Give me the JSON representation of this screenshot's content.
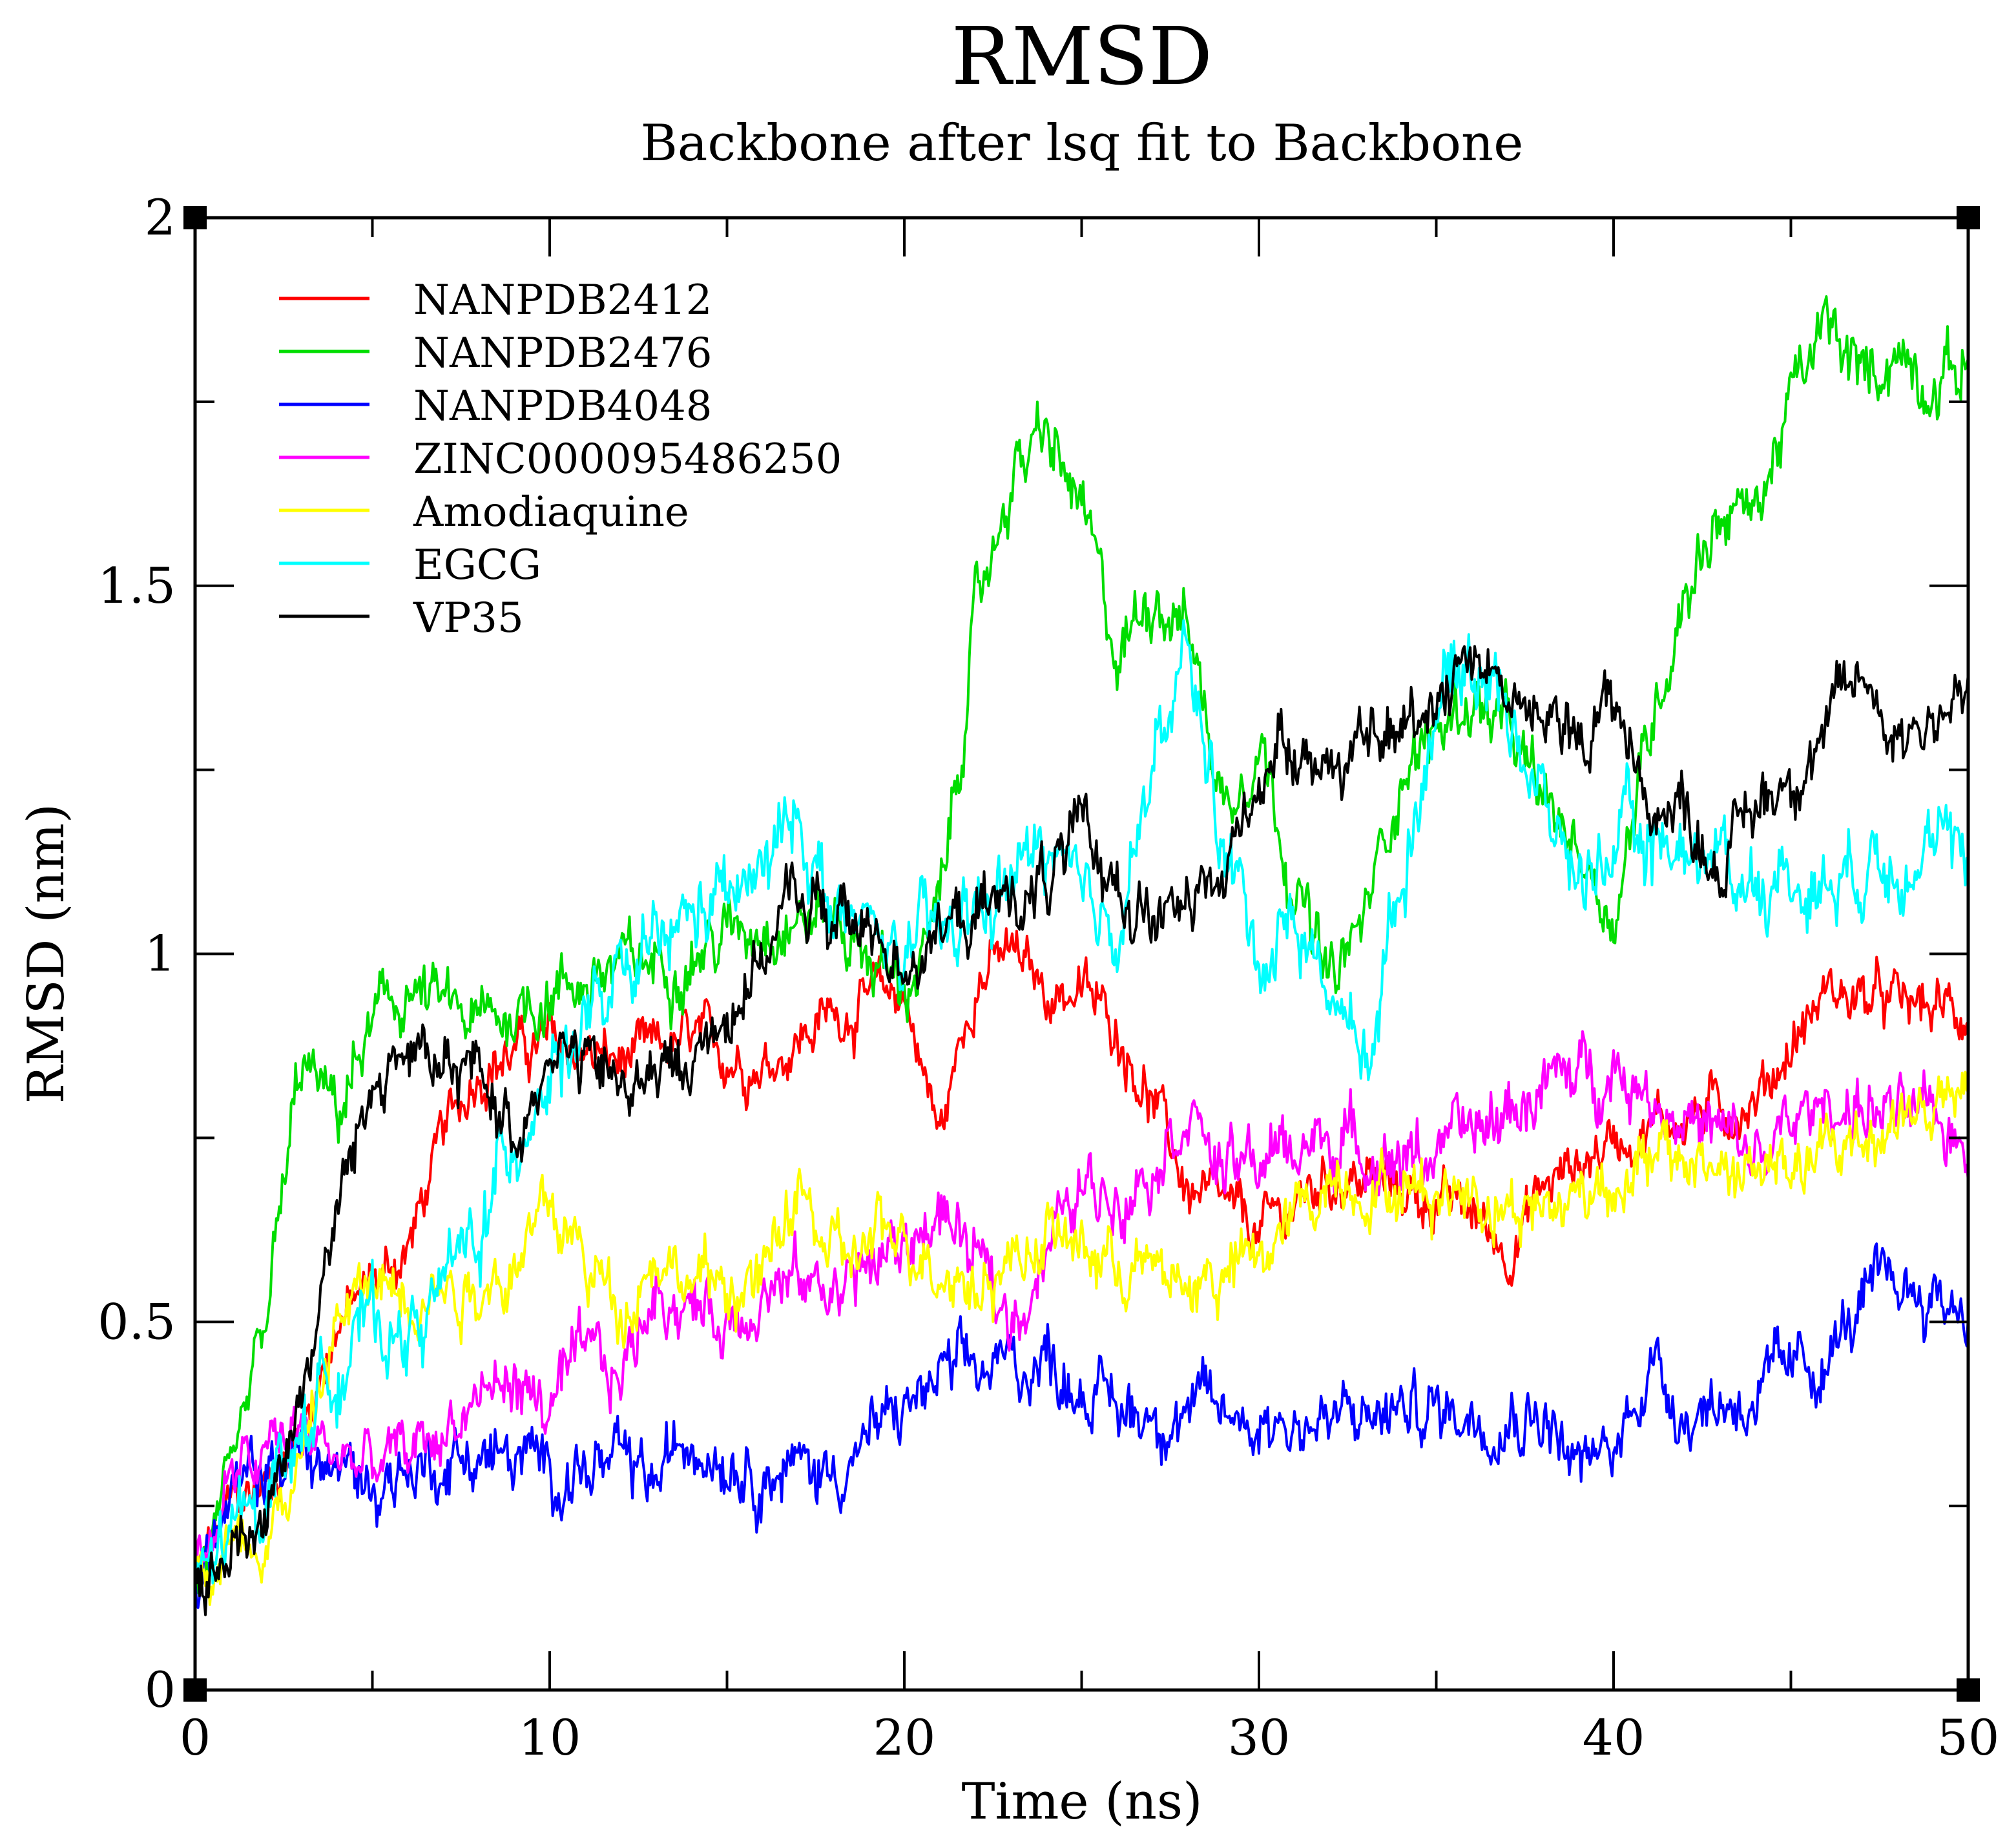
{
  "chart_data": {
    "type": "line",
    "title": "RMSD",
    "subtitle": "Backbone after lsq fit to Backbone",
    "xlabel": "Time (ns)",
    "ylabel": "RMSD (nm)",
    "xlim": [
      0,
      50
    ],
    "ylim": [
      0,
      2
    ],
    "x_ticks": [
      0,
      10,
      20,
      30,
      40,
      50
    ],
    "x_tick_labels": [
      "0",
      "10",
      "20",
      "30",
      "40",
      "50"
    ],
    "x_minor_step": 5,
    "y_ticks": [
      0,
      0.5,
      1,
      1.5,
      2
    ],
    "y_tick_labels": [
      "0",
      "0.5",
      "1",
      "1.5",
      "2"
    ],
    "y_minor_step": 0.25,
    "grid": false,
    "legend_position": "top-left",
    "series": [
      {
        "name": "NANPDB2412",
        "color": "#ff0000",
        "noise": 0.025,
        "x": [
          0,
          1,
          2,
          3,
          4,
          5,
          6,
          7,
          8,
          10,
          12,
          14,
          16,
          18,
          20,
          21,
          22,
          23,
          24,
          25,
          26,
          27,
          28,
          29,
          30,
          32,
          34,
          36,
          37,
          38,
          40,
          42,
          44,
          46,
          48,
          50
        ],
        "values": [
          0.15,
          0.25,
          0.28,
          0.35,
          0.5,
          0.55,
          0.6,
          0.75,
          0.85,
          0.88,
          0.85,
          0.88,
          0.85,
          0.92,
          0.95,
          0.75,
          0.97,
          1.0,
          0.95,
          0.95,
          0.9,
          0.8,
          0.68,
          0.65,
          0.62,
          0.7,
          0.68,
          0.65,
          0.6,
          0.68,
          0.75,
          0.78,
          0.8,
          0.95,
          0.93,
          0.92
        ]
      },
      {
        "name": "NANPDB2476",
        "color": "#00dd00",
        "noise": 0.03,
        "x": [
          0,
          1,
          2,
          3,
          4,
          5,
          6,
          8,
          10,
          12,
          14,
          16,
          18,
          20,
          21,
          22,
          23,
          24,
          25,
          26,
          27,
          28,
          29,
          30,
          31,
          32,
          33,
          34,
          35,
          36,
          37,
          38,
          39,
          40,
          41,
          42,
          43,
          44,
          45,
          46,
          47,
          48,
          49,
          50
        ],
        "values": [
          0.15,
          0.25,
          0.5,
          0.85,
          0.78,
          0.9,
          0.95,
          0.9,
          0.95,
          0.98,
          1.0,
          1.05,
          1.05,
          0.95,
          1.05,
          1.45,
          1.65,
          1.7,
          1.6,
          1.4,
          1.5,
          1.45,
          1.2,
          1.3,
          1.1,
          0.95,
          1.05,
          1.25,
          1.3,
          1.35,
          1.3,
          1.2,
          1.15,
          1.05,
          1.3,
          1.5,
          1.6,
          1.6,
          1.75,
          1.85,
          1.78,
          1.82,
          1.78,
          1.8
        ]
      },
      {
        "name": "NANPDB4048",
        "color": "#0000ff",
        "noise": 0.03,
        "x": [
          0,
          1,
          2,
          3,
          4,
          5,
          6,
          8,
          10,
          12,
          13,
          14,
          16,
          18,
          20,
          21,
          22,
          24,
          26,
          28,
          30,
          32,
          34,
          36,
          38,
          39,
          40,
          41,
          42,
          44,
          46,
          47,
          48,
          50
        ],
        "values": [
          0.15,
          0.25,
          0.3,
          0.32,
          0.3,
          0.28,
          0.3,
          0.32,
          0.3,
          0.3,
          0.28,
          0.35,
          0.3,
          0.3,
          0.38,
          0.42,
          0.43,
          0.45,
          0.38,
          0.38,
          0.37,
          0.36,
          0.38,
          0.38,
          0.38,
          0.3,
          0.32,
          0.45,
          0.38,
          0.4,
          0.45,
          0.52,
          0.55,
          0.52
        ]
      },
      {
        "name": "ZINC000095486250",
        "color": "#ff00ff",
        "noise": 0.03,
        "x": [
          0,
          1,
          2,
          3,
          4,
          5,
          6,
          7,
          8,
          9,
          10,
          11,
          12,
          13,
          14,
          15,
          16,
          18,
          20,
          21,
          22,
          23,
          24,
          25,
          26,
          27,
          28,
          29,
          30,
          32,
          34,
          36,
          38,
          40,
          42,
          44,
          46,
          48,
          50
        ],
        "values": [
          0.15,
          0.28,
          0.32,
          0.35,
          0.32,
          0.3,
          0.32,
          0.35,
          0.4,
          0.42,
          0.38,
          0.45,
          0.42,
          0.55,
          0.52,
          0.5,
          0.55,
          0.55,
          0.6,
          0.65,
          0.58,
          0.5,
          0.6,
          0.68,
          0.68,
          0.72,
          0.8,
          0.7,
          0.72,
          0.75,
          0.72,
          0.75,
          0.82,
          0.85,
          0.78,
          0.72,
          0.8,
          0.78,
          0.75
        ]
      },
      {
        "name": "Amodiaquine",
        "color": "#ffff00",
        "noise": 0.03,
        "x": [
          0,
          1,
          2,
          3,
          4,
          5,
          6,
          8,
          9,
          10,
          12,
          13,
          14,
          16,
          17,
          18,
          20,
          22,
          24,
          26,
          28,
          30,
          32,
          34,
          36,
          38,
          40,
          42,
          44,
          46,
          48,
          50
        ],
        "values": [
          0.15,
          0.2,
          0.22,
          0.3,
          0.5,
          0.55,
          0.55,
          0.55,
          0.58,
          0.65,
          0.52,
          0.6,
          0.55,
          0.55,
          0.68,
          0.58,
          0.62,
          0.55,
          0.62,
          0.58,
          0.55,
          0.58,
          0.7,
          0.68,
          0.68,
          0.65,
          0.7,
          0.72,
          0.7,
          0.72,
          0.78,
          0.8
        ]
      },
      {
        "name": "EGCG",
        "color": "#00ffff",
        "noise": 0.035,
        "x": [
          0,
          1,
          2,
          3,
          4,
          5,
          6,
          7,
          8,
          9,
          10,
          12,
          14,
          16,
          17,
          18,
          20,
          22,
          24,
          25,
          26,
          27,
          28,
          29,
          30,
          31,
          32,
          33,
          34,
          35,
          36,
          37,
          38,
          39,
          40,
          42,
          44,
          46,
          48,
          50
        ],
        "values": [
          0.15,
          0.2,
          0.28,
          0.35,
          0.45,
          0.5,
          0.48,
          0.55,
          0.62,
          0.75,
          0.85,
          0.95,
          1.05,
          1.1,
          1.2,
          1.05,
          1.0,
          1.05,
          1.15,
          1.05,
          1.05,
          1.25,
          1.4,
          1.15,
          1.0,
          1.05,
          0.95,
          0.85,
          1.1,
          1.35,
          1.4,
          1.35,
          1.2,
          1.1,
          1.15,
          1.15,
          1.1,
          1.1,
          1.15,
          1.12
        ]
      },
      {
        "name": "VP35",
        "color": "#000000",
        "noise": 0.03,
        "x": [
          0,
          1,
          2,
          3,
          4,
          5,
          6,
          7,
          8,
          9,
          10,
          11,
          12,
          14,
          16,
          17,
          18,
          20,
          22,
          24,
          25,
          26,
          27,
          28,
          29,
          30,
          31,
          32,
          34,
          36,
          38,
          39,
          40,
          41,
          42,
          43,
          44,
          46,
          47,
          48,
          50
        ],
        "values": [
          0.15,
          0.18,
          0.25,
          0.4,
          0.65,
          0.82,
          0.88,
          0.82,
          0.85,
          0.75,
          0.88,
          0.85,
          0.82,
          0.85,
          1.0,
          1.08,
          1.05,
          1.0,
          1.05,
          1.1,
          1.15,
          1.1,
          1.05,
          1.05,
          1.1,
          1.25,
          1.3,
          1.25,
          1.3,
          1.42,
          1.3,
          1.3,
          1.35,
          1.2,
          1.2,
          1.12,
          1.2,
          1.3,
          1.38,
          1.3,
          1.35
        ]
      }
    ]
  }
}
